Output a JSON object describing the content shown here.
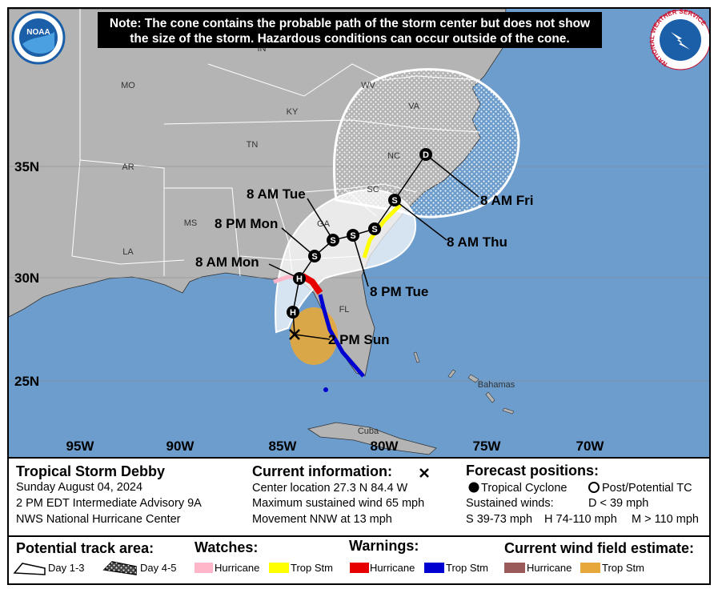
{
  "note": [
    "Note: The cone contains the probable path of the storm center but does not show",
    "the size of the storm. Hazardous conditions can occur outside of the cone."
  ],
  "logos": {
    "left": "NOAA",
    "right": "NATIONAL WEATHER SERVICE"
  },
  "map": {
    "regions": [
      "MO",
      "IN",
      "KY",
      "WV",
      "VA",
      "NC",
      "TN",
      "AR",
      "SC",
      "GA",
      "MS",
      "LA",
      "FL",
      "Bahamas",
      "Cuba"
    ],
    "latitudes": [
      "35N",
      "30N",
      "25N"
    ],
    "longitudes": [
      "95W",
      "90W",
      "85W",
      "80W",
      "75W",
      "70W"
    ],
    "forecast_times": [
      "8 AM Tue",
      "8 PM Mon",
      "8 AM Mon",
      "2 PM Sun",
      "8 PM Tue",
      "8 AM Thu",
      "8 AM Fri"
    ],
    "positions": [
      "H",
      "H",
      "S",
      "S",
      "S",
      "S",
      "S",
      "D"
    ]
  },
  "info": {
    "title": "Tropical Storm Debby",
    "date": "Sunday August 04, 2024",
    "advisory": "2 PM EDT Intermediate Advisory 9A",
    "source": "NWS National Hurricane Center",
    "current_heading": "Current information:",
    "current_lines": [
      "Center location 27.3 N 84.4 W",
      "Maximum sustained wind 65 mph",
      "Movement NNW at 13 mph"
    ],
    "forecast_heading": "Forecast positions:",
    "tropical_cyclone": "Tropical Cyclone",
    "post_tc": "Post/Potential TC",
    "sustained": "Sustained winds:",
    "wind_d": "D < 39 mph",
    "wind_s": "S 39-73 mph",
    "wind_h": "H 74-110 mph",
    "wind_m": "M > 110 mph"
  },
  "legend": {
    "track_heading": "Potential track area:",
    "day13": "Day 1-3",
    "day45": "Day 4-5",
    "watches_heading": "Watches:",
    "watch_hurricane": "Hurricane",
    "watch_tropstm": "Trop Stm",
    "warnings_heading": "Warnings:",
    "warning_hurricane": "Hurricane",
    "warning_tropstm": "Trop Stm",
    "wind_heading": "Current wind field estimate:",
    "wind_hurricane": "Hurricane",
    "wind_tropstm": "Trop Stm"
  }
}
